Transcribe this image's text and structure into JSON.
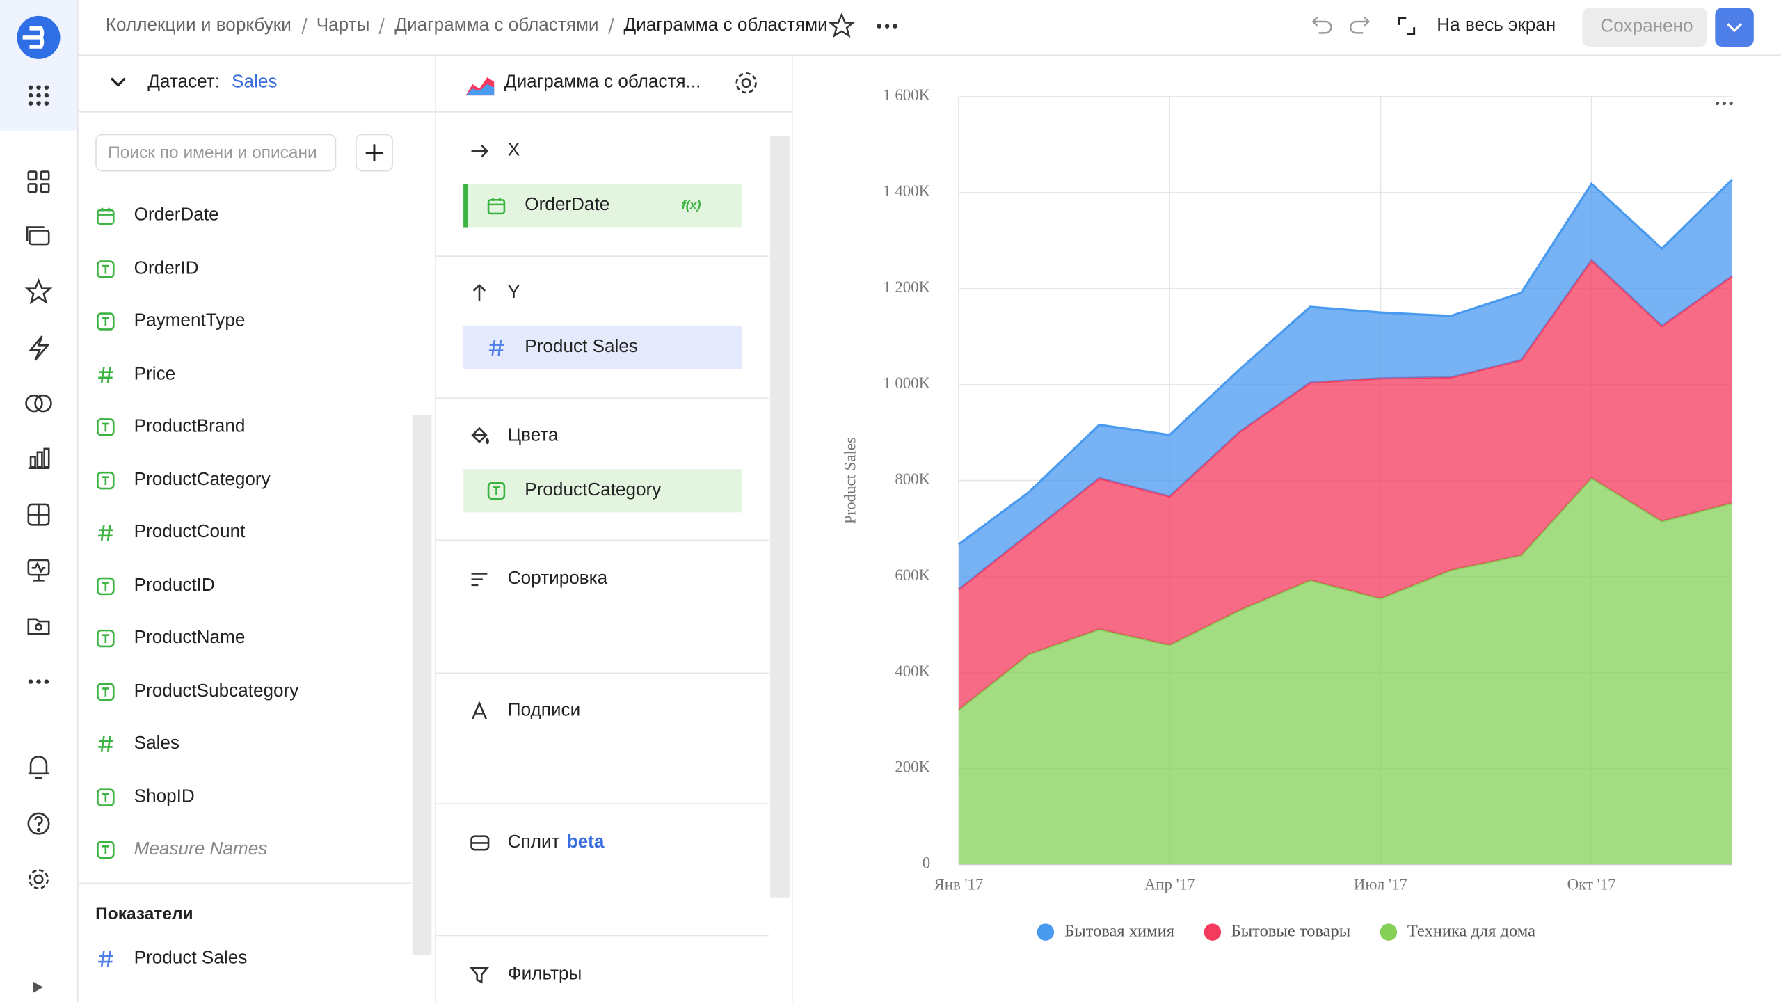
{
  "header": {
    "breadcrumbs": [
      "Коллекции и воркбуки",
      "Чарты",
      "Диаграмма с областями"
    ],
    "title": "Диаграмма с областями",
    "fullscreen": "На весь экран",
    "save": "Сохранено"
  },
  "dataset": {
    "label": "Датасет:",
    "name": "Sales",
    "search_placeholder": "Поиск по имени и описани",
    "fields": [
      {
        "name": "OrderDate",
        "icon": "date"
      },
      {
        "name": "OrderID",
        "icon": "text"
      },
      {
        "name": "PaymentType",
        "icon": "text"
      },
      {
        "name": "Price",
        "icon": "number"
      },
      {
        "name": "ProductBrand",
        "icon": "text"
      },
      {
        "name": "ProductCategory",
        "icon": "text"
      },
      {
        "name": "ProductCount",
        "icon": "number"
      },
      {
        "name": "ProductID",
        "icon": "text"
      },
      {
        "name": "ProductName",
        "icon": "text"
      },
      {
        "name": "ProductSubcategory",
        "icon": "text"
      },
      {
        "name": "Sales",
        "icon": "number"
      },
      {
        "name": "ShopID",
        "icon": "text"
      },
      {
        "name": "Measure Names",
        "icon": "text",
        "italic": true
      }
    ],
    "measures_title": "Показатели",
    "measures": [
      {
        "name": "Product Sales",
        "icon": "number"
      }
    ]
  },
  "wizard": {
    "chart_type": "Диаграмма с областя...",
    "sections": [
      {
        "title": "X",
        "icon": "arrow-right",
        "field": {
          "name": "OrderDate",
          "icon": "date",
          "color": "green",
          "badge": "f(x)"
        }
      },
      {
        "title": "Y",
        "icon": "arrow-up",
        "field": {
          "name": "Product Sales",
          "icon": "number",
          "color": "blue"
        }
      },
      {
        "title": "Цвета",
        "icon": "paint",
        "field": {
          "name": "ProductCategory",
          "icon": "text",
          "color": "green"
        }
      },
      {
        "title": "Сортировка",
        "icon": "sort"
      },
      {
        "title": "Подписи",
        "icon": "label"
      },
      {
        "title": "Сплит",
        "tag": "beta",
        "icon": "split"
      },
      {
        "title": "Фильтры",
        "icon": "filter"
      }
    ]
  },
  "chart_data": {
    "type": "area",
    "stacked": true,
    "y_label": "Product Sales",
    "categories": [
      "Янв '17",
      null,
      null,
      "Апр '17",
      null,
      null,
      "Июл '17",
      null,
      null,
      "Окт '17",
      null,
      null
    ],
    "series": [
      {
        "name": "Бытовая химия",
        "color": "#4a9af0",
        "values": [
          94000,
          87000,
          111000,
          128000,
          130000,
          158000,
          137000,
          128000,
          140000,
          159000,
          161000,
          201000
        ]
      },
      {
        "name": "Бытовые товары",
        "color": "#f43a5e",
        "values": [
          251000,
          251000,
          315000,
          310000,
          372000,
          412000,
          459000,
          402000,
          407000,
          454000,
          407000,
          473000
        ]
      },
      {
        "name": "Техника для дома",
        "color": "#86d05a",
        "values": [
          322000,
          438000,
          490000,
          457000,
          530000,
          592000,
          554000,
          613000,
          644000,
          805000,
          715000,
          753000
        ]
      }
    ],
    "ylim": [
      0,
      1600000
    ],
    "yticks": [
      0,
      {
        "value": 200000,
        "label": "200K"
      },
      {
        "value": 400000,
        "label": "400K"
      },
      {
        "value": 600000,
        "label": "600K"
      },
      {
        "value": 800000,
        "label": "800K"
      },
      {
        "value": 1000000,
        "label": "1 000K"
      },
      {
        "value": 1200000,
        "label": "1 200K"
      },
      {
        "value": 1400000,
        "label": "1 400K"
      },
      {
        "value": 1600000,
        "label": "1 600K"
      }
    ],
    "grid": true,
    "legend": "bottom"
  }
}
